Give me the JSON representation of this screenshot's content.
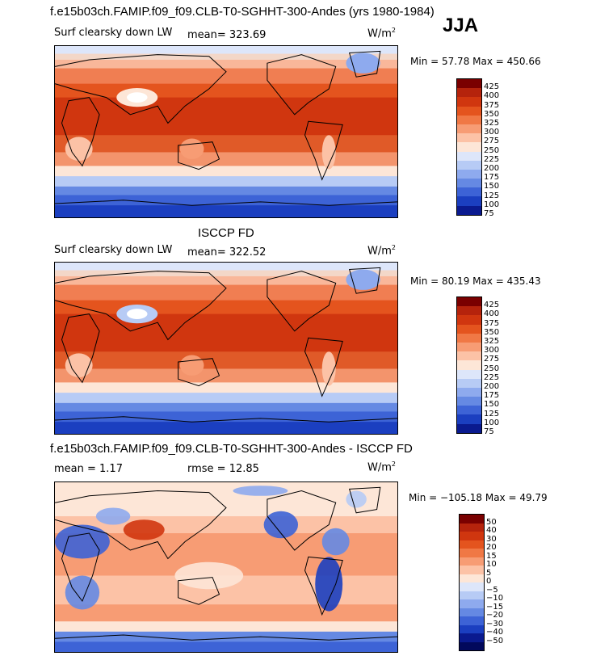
{
  "header": {
    "title": "f.e15b03ch.FAMIP.f09_f09.CLB-T0-SGHHT-300-Andes (yrs 1980-1984)",
    "season": "JJA"
  },
  "chart_data": [
    {
      "type": "heatmap",
      "variable": "Surf clearsky down LW",
      "mean_label": "mean= 323.69",
      "units": "W/m",
      "units_sup": "2",
      "minmax_label": "Min =  57.78 Max = 450.66",
      "min": 57.78,
      "max": 450.66,
      "levels": [
        425,
        400,
        375,
        350,
        325,
        300,
        275,
        250,
        225,
        200,
        175,
        150,
        125,
        100,
        75
      ]
    },
    {
      "type": "heatmap",
      "title": "ISCCP FD",
      "variable": "Surf clearsky down LW",
      "mean_label": "mean= 322.52",
      "units": "W/m",
      "units_sup": "2",
      "minmax_label": "Min =  80.19 Max = 435.43",
      "min": 80.19,
      "max": 435.43,
      "levels": [
        425,
        400,
        375,
        350,
        325,
        300,
        275,
        250,
        225,
        200,
        175,
        150,
        125,
        100,
        75
      ]
    },
    {
      "type": "heatmap",
      "title": "f.e15b03ch.FAMIP.f09_f09.CLB-T0-SGHHT-300-Andes - ISCCP FD",
      "mean_label": "mean =   1.17",
      "rmse_label": "rmse =  12.85",
      "units": "W/m",
      "units_sup": "2",
      "minmax_label": "Min = −105.18 Max =  49.79",
      "min": -105.18,
      "max": 49.79,
      "levels": [
        "50",
        "40",
        "30",
        "20",
        "15",
        "10",
        "5",
        "0",
        "−5",
        "−10",
        "−15",
        "−20",
        "−30",
        "−40",
        "−50"
      ]
    }
  ],
  "colors": {
    "abs_bar": [
      "#7a0000",
      "#b5230c",
      "#d0360f",
      "#e4541e",
      "#f07845",
      "#f79c74",
      "#fcc2a6",
      "#fde6d7",
      "#dde6fa",
      "#b7cbf5",
      "#8eaaee",
      "#6589e3",
      "#3d63d6",
      "#1b3fc0",
      "#0a1a8f"
    ],
    "diff_bar": [
      "#7a0000",
      "#b5230c",
      "#d0360f",
      "#e4541e",
      "#f07845",
      "#f79c74",
      "#fcc2a6",
      "#fde6d7",
      "#dde6fa",
      "#b7cbf5",
      "#8eaaee",
      "#6589e3",
      "#3d63d6",
      "#1b3fc0",
      "#0a1a8f",
      "#02095c"
    ]
  }
}
